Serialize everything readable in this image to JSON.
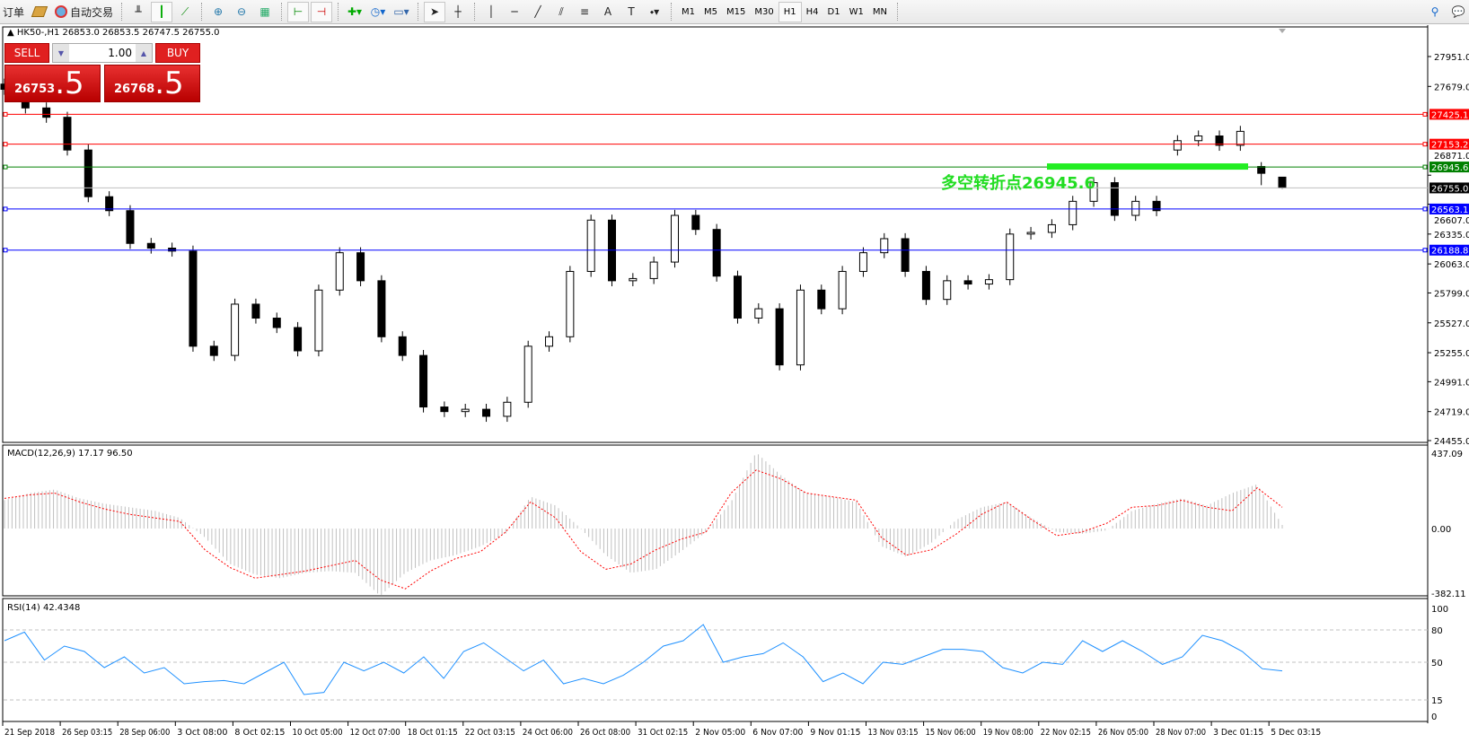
{
  "toolbar": {
    "orders_label": "订单",
    "auto_trading_label": "自动交易",
    "icons": [
      "bar-chart-icon",
      "candlestick-icon",
      "line-chart-icon",
      "zoom-in-icon",
      "zoom-out-icon",
      "tile-windows-icon",
      "chart-shift-icon",
      "autoscroll-icon",
      "indicators-icon",
      "periods-icon",
      "templates-icon",
      "cursor-icon",
      "crosshair-icon",
      "vertical-line-icon",
      "horizontal-line-icon",
      "trendline-icon",
      "equidistant-channel-icon",
      "fibonacci-icon",
      "text-icon",
      "text-label-icon",
      "arrows-icon",
      "search-icon",
      "chat-icon"
    ],
    "timeframes": [
      "M1",
      "M5",
      "M15",
      "M30",
      "H1",
      "H4",
      "D1",
      "W1",
      "MN"
    ],
    "selected_timeframe": "H1"
  },
  "chart": {
    "header": "HK50-,H1  26853.0 26853.5 26747.5 26755.0",
    "trade_panel": {
      "sell_label": "SELL",
      "buy_label": "BUY",
      "lot": "1.00",
      "sell_main": "26753",
      "sell_big": ".5",
      "buy_main": "26768",
      "buy_big": ".5"
    },
    "annotation": "多空转折点26945.6",
    "macd_label": "MACD(12,26,9) 17.17 96.50",
    "rsi_label": "RSI(14) 42.4348"
  },
  "colors": {
    "resistance": "#ff0000",
    "pivot": "#008000",
    "support": "#0000ff",
    "bid": "#c0c0c0",
    "annotation": "#22dd22",
    "macd_signal": "#ff0000",
    "macd_hist": "#c0c0c0",
    "rsi": "#1e90ff"
  },
  "chart_data": [
    {
      "type": "candlestick",
      "symbol": "HK50-",
      "timeframe": "H1",
      "ylim": [
        24455.0,
        27951.0
      ],
      "y_ticks": [
        "27951.0",
        "27679.0",
        "26871.0",
        "26607.0",
        "26335.0",
        "26063.0",
        "25799.0",
        "25527.0",
        "25255.0",
        "24991.0",
        "24719.0",
        "24455.0"
      ],
      "x_ticks": [
        "21 Sep 2018",
        "26 Sep 03:15",
        "28 Sep 06:00",
        "3 Oct 08:00",
        "8 Oct 02:15",
        "10 Oct 05:00",
        "12 Oct 07:00",
        "18 Oct 01:15",
        "22 Oct 03:15",
        "24 Oct 06:00",
        "26 Oct 08:00",
        "31 Oct 02:15",
        "2 Nov 05:00",
        "6 Nov 07:00",
        "9 Nov 01:15",
        "13 Nov 03:15",
        "15 Nov 06:00",
        "19 Nov 08:00",
        "22 Nov 02:15",
        "26 Nov 05:00",
        "28 Nov 07:00",
        "3 Dec 01:15",
        "5 Dec 03:15"
      ],
      "ohlc": [
        [
          27700,
          27750,
          27603,
          27653
        ],
        [
          27653,
          27703,
          27433,
          27483
        ],
        [
          27483,
          27533,
          27348,
          27398
        ],
        [
          27398,
          27448,
          27050,
          27100
        ],
        [
          27100,
          27150,
          26625,
          26675
        ],
        [
          26675,
          26725,
          26498,
          26548
        ],
        [
          26548,
          26598,
          26200,
          26250
        ],
        [
          26250,
          26300,
          26157,
          26207
        ],
        [
          26207,
          26257,
          26130,
          26180
        ],
        [
          26180,
          26230,
          25264,
          25314
        ],
        [
          25314,
          25364,
          25180,
          25230
        ],
        [
          25230,
          25747,
          25180,
          25697
        ],
        [
          25697,
          25747,
          25520,
          25570
        ],
        [
          25570,
          25620,
          25434,
          25484
        ],
        [
          25484,
          25534,
          25222,
          25272
        ],
        [
          25272,
          25875,
          25222,
          25825
        ],
        [
          25825,
          26215,
          25775,
          26165
        ],
        [
          26165,
          26215,
          25860,
          25910
        ],
        [
          25910,
          25960,
          25350,
          25400
        ],
        [
          25400,
          25450,
          25180,
          25230
        ],
        [
          25230,
          25280,
          24711,
          24761
        ],
        [
          24761,
          24811,
          24669,
          24719
        ],
        [
          24719,
          24790,
          24669,
          24740
        ],
        [
          24740,
          24790,
          24626,
          24676
        ],
        [
          24676,
          24854,
          24626,
          24804
        ],
        [
          24804,
          25364,
          24754,
          25314
        ],
        [
          25314,
          25450,
          25264,
          25400
        ],
        [
          25400,
          26045,
          25350,
          25995
        ],
        [
          25995,
          26512,
          25945,
          26462
        ],
        [
          26462,
          26512,
          25860,
          25910
        ],
        [
          25910,
          25980,
          25860,
          25930
        ],
        [
          25930,
          26130,
          25880,
          26080
        ],
        [
          26080,
          26555,
          26030,
          26505
        ],
        [
          26505,
          26555,
          26327,
          26377
        ],
        [
          26377,
          26427,
          25902,
          25952
        ],
        [
          25952,
          26002,
          25520,
          25570
        ],
        [
          25570,
          25705,
          25520,
          25655
        ],
        [
          25655,
          25705,
          25094,
          25144
        ],
        [
          25144,
          25875,
          25094,
          25825
        ],
        [
          25825,
          25875,
          25605,
          25655
        ],
        [
          25655,
          26045,
          25605,
          25995
        ],
        [
          25995,
          26215,
          25945,
          26165
        ],
        [
          26165,
          26343,
          26115,
          26293
        ],
        [
          26293,
          26343,
          25945,
          25995
        ],
        [
          25995,
          26045,
          25690,
          25740
        ],
        [
          25740,
          25960,
          25690,
          25910
        ],
        [
          25910,
          25960,
          25830,
          25880
        ],
        [
          25880,
          25970,
          25830,
          25920
        ],
        [
          25920,
          26385,
          25870,
          26335
        ],
        [
          26335,
          26400,
          26285,
          26350
        ],
        [
          26350,
          26470,
          26300,
          26420
        ],
        [
          26420,
          26683,
          26370,
          26633
        ],
        [
          26633,
          26853,
          26583,
          26803
        ],
        [
          26803,
          26853,
          26455,
          26505
        ],
        [
          26505,
          26683,
          26455,
          26633
        ],
        [
          26633,
          26683,
          26498,
          26548
        ],
        [
          27100,
          27235,
          27050,
          27185
        ],
        [
          27185,
          27278,
          27135,
          27228
        ],
        [
          27228,
          27278,
          27093,
          27143
        ],
        [
          27143,
          27320,
          27093,
          27270
        ],
        [
          26950,
          26990,
          26780,
          26888
        ],
        [
          26853.0,
          26853.5,
          26747.5,
          26755.0
        ]
      ],
      "hlines": [
        {
          "price": "27425.1",
          "kind": "resistance"
        },
        {
          "price": "27153.2",
          "kind": "resistance"
        },
        {
          "price": "26945.6",
          "kind": "pivot"
        },
        {
          "price": "26755.0",
          "kind": "bid"
        },
        {
          "price": "26563.1",
          "kind": "support"
        },
        {
          "price": "26188.8",
          "kind": "support"
        }
      ],
      "pivot_zone_price": 26945.6
    },
    {
      "type": "bar+line",
      "name": "MACD(12,26,9)",
      "ylim": [
        -382.11,
        437.09
      ],
      "y_ticks": [
        "437.09",
        "0.00",
        "-382.11"
      ],
      "histogram": [
        160,
        200,
        220,
        170,
        140,
        120,
        100,
        60,
        -50,
        -200,
        -260,
        -280,
        -250,
        -240,
        -250,
        -380,
        -250,
        -180,
        -150,
        -100,
        -30,
        180,
        130,
        0,
        -150,
        -250,
        -230,
        -130,
        -20,
        150,
        430,
        300,
        200,
        180,
        150,
        -100,
        -160,
        -80,
        50,
        120,
        150,
        60,
        -20,
        -30,
        -10,
        100,
        140,
        170,
        130,
        200,
        250,
        20
      ],
      "signal": [
        170,
        190,
        200,
        150,
        110,
        80,
        60,
        40,
        -120,
        -220,
        -280,
        -260,
        -240,
        -210,
        -180,
        -290,
        -340,
        -240,
        -170,
        -130,
        -20,
        150,
        60,
        -130,
        -230,
        -200,
        -120,
        -60,
        -20,
        200,
        330,
        280,
        200,
        180,
        160,
        -50,
        -150,
        -120,
        -30,
        80,
        150,
        50,
        -40,
        -20,
        30,
        120,
        130,
        160,
        120,
        100,
        230,
        120
      ]
    },
    {
      "type": "line",
      "name": "RSI(14)",
      "ylim": [
        0,
        100
      ],
      "y_ticks": [
        "100",
        "80",
        "50",
        "15",
        "0"
      ],
      "levels": [
        80,
        50,
        15
      ],
      "values": [
        70,
        78,
        52,
        65,
        60,
        45,
        55,
        40,
        45,
        30,
        32,
        33,
        30,
        40,
        50,
        20,
        22,
        50,
        42,
        50,
        40,
        55,
        35,
        60,
        68,
        55,
        42,
        52,
        30,
        35,
        30,
        38,
        50,
        65,
        70,
        85,
        50,
        55,
        58,
        68,
        55,
        32,
        40,
        30,
        50,
        48,
        55,
        62,
        62,
        60,
        45,
        40,
        50,
        48,
        70,
        60,
        70,
        60,
        48,
        55,
        75,
        70,
        60,
        44,
        42
      ]
    }
  ]
}
